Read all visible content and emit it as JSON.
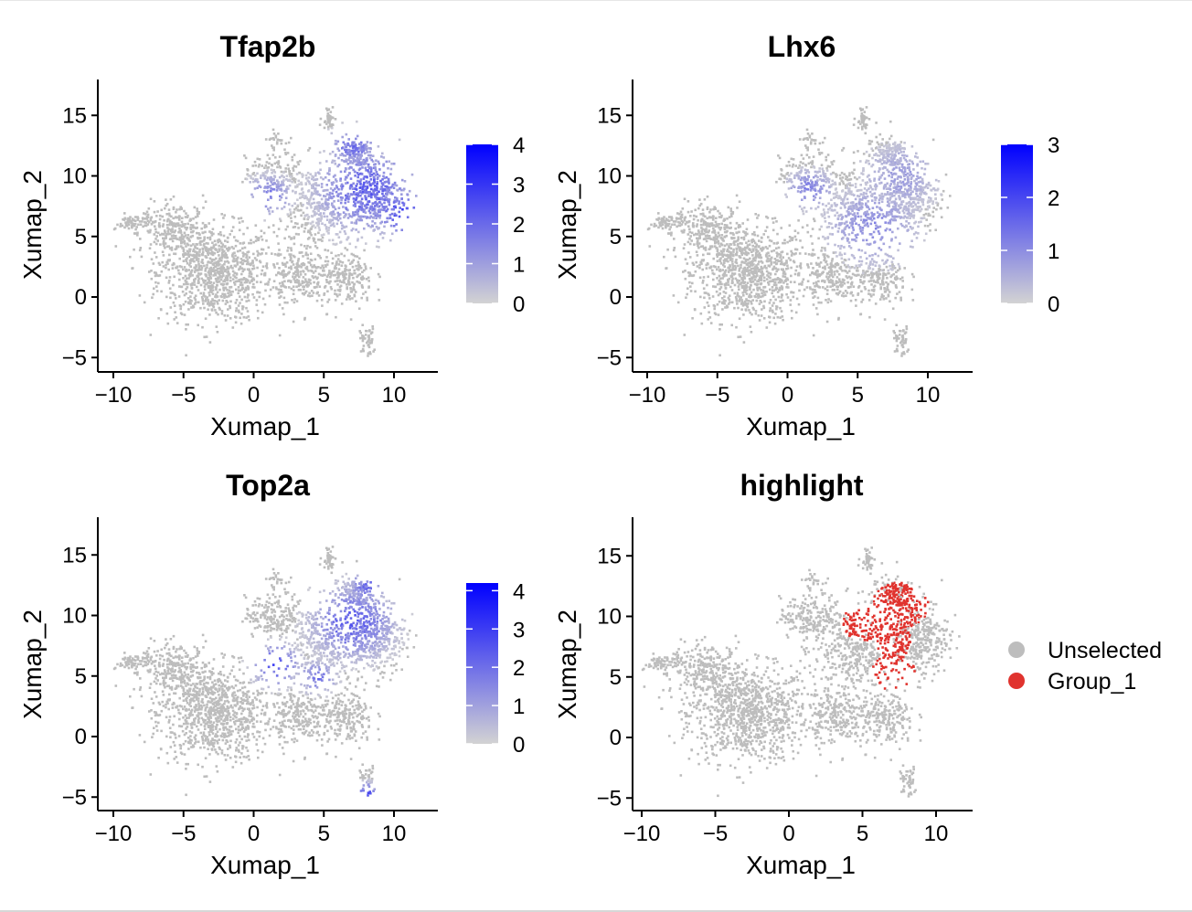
{
  "figure": {
    "axis_tick_labels": {
      "x": [
        "−10",
        "−5",
        "0",
        "5",
        "10"
      ],
      "y": [
        "−5",
        "0",
        "5",
        "10",
        "15"
      ]
    },
    "colors": {
      "low": "#d3d3d3",
      "high": "#0000ff",
      "cell": "#bdbdbd",
      "group": "#e0332e"
    }
  },
  "chart_data": [
    {
      "type": "scatter",
      "title": "Tfap2b",
      "xlabel": "Xumap_1",
      "ylabel": "Xumap_2",
      "xlim": [
        -11.5,
        13
      ],
      "ylim": [
        -6,
        18
      ],
      "xticks": [
        -10,
        -5,
        0,
        5,
        10
      ],
      "yticks": [
        -5,
        0,
        5,
        10,
        15
      ],
      "colorbar": {
        "min": 0,
        "max": 4,
        "ticks": [
          0,
          1,
          2,
          3,
          4
        ],
        "tick_labels": [
          "0",
          "1",
          "2",
          "3",
          "4"
        ]
      },
      "expression_regions": [
        {
          "x": 8.0,
          "y": 9.0,
          "value": 2.6,
          "spread": 2.2
        },
        {
          "x": 10.5,
          "y": 7.0,
          "value": 3.2,
          "spread": 1.2
        },
        {
          "x": 7.0,
          "y": 12.5,
          "value": 2.4,
          "spread": 1.0
        },
        {
          "x": 1.0,
          "y": 8.5,
          "value": 2.0,
          "spread": 1.0
        }
      ]
    },
    {
      "type": "scatter",
      "title": "Lhx6",
      "xlabel": "Xumap_1",
      "ylabel": "Xumap_2",
      "xlim": [
        -11.5,
        13
      ],
      "ylim": [
        -6,
        18
      ],
      "xticks": [
        -10,
        -5,
        0,
        5,
        10
      ],
      "yticks": [
        -5,
        0,
        5,
        10,
        15
      ],
      "colorbar": {
        "min": 0,
        "max": 3,
        "ticks": [
          0,
          1,
          2,
          3
        ],
        "tick_labels": [
          "0",
          "1",
          "2",
          "3"
        ]
      },
      "expression_regions": [
        {
          "x": 6.0,
          "y": 6.0,
          "value": 1.2,
          "spread": 2.0
        },
        {
          "x": 1.5,
          "y": 9.0,
          "value": 1.4,
          "spread": 1.0
        },
        {
          "x": 8.0,
          "y": 10.0,
          "value": 0.9,
          "spread": 1.8
        }
      ]
    },
    {
      "type": "scatter",
      "title": "Top2a",
      "xlabel": "Xumap_1",
      "ylabel": "Xumap_2",
      "xlim": [
        -11.5,
        13
      ],
      "ylim": [
        -6,
        18
      ],
      "xticks": [
        -10,
        -5,
        0,
        5,
        10
      ],
      "yticks": [
        -5,
        0,
        5,
        10,
        15
      ],
      "colorbar": {
        "min": 0,
        "max": 4.2,
        "ticks": [
          0,
          1,
          2,
          3,
          4
        ],
        "tick_labels": [
          "0",
          "1",
          "2",
          "3",
          "4"
        ]
      },
      "expression_regions": [
        {
          "x": 1.5,
          "y": 6.0,
          "value": 3.2,
          "spread": 1.0
        },
        {
          "x": 7.0,
          "y": 9.5,
          "value": 2.8,
          "spread": 1.8
        },
        {
          "x": 8.0,
          "y": 12.5,
          "value": 2.6,
          "spread": 0.8
        },
        {
          "x": 8.0,
          "y": -4.5,
          "value": 3.0,
          "spread": 0.5
        },
        {
          "x": 4.5,
          "y": 5.0,
          "value": 2.4,
          "spread": 0.8
        }
      ]
    },
    {
      "type": "scatter",
      "title": "highlight",
      "xlabel": "Xumap_1",
      "ylabel": "Xumap_2",
      "xlim": [
        -11.5,
        13
      ],
      "ylim": [
        -6,
        18
      ],
      "xticks": [
        -10,
        -5,
        0,
        5,
        10
      ],
      "yticks": [
        -5,
        0,
        5,
        10,
        15
      ],
      "legend": {
        "placement": "right",
        "entries": [
          {
            "label": "Unselected",
            "color": "#bdbdbd"
          },
          {
            "label": "Group_1",
            "color": "#e0332e"
          }
        ]
      },
      "group_regions": [
        {
          "x": 7.5,
          "y": 11.0,
          "spread": 1.3
        },
        {
          "x": 7.0,
          "y": 8.0,
          "spread": 0.9
        },
        {
          "x": 7.0,
          "y": 5.5,
          "spread": 1.0
        },
        {
          "x": 5.0,
          "y": 9.5,
          "spread": 1.0
        },
        {
          "x": 9.5,
          "y": 3.5,
          "spread": 0.5
        }
      ]
    }
  ]
}
